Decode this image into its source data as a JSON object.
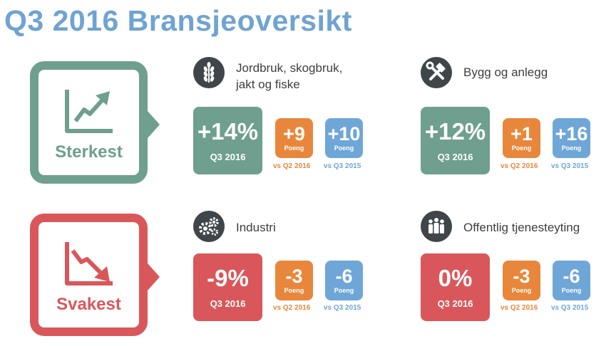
{
  "title": "Q3 2016 Bransjeoversikt",
  "categories": {
    "strongest": {
      "label": "Sterkest",
      "color": "#6f9f8e",
      "icon": "trend-up-icon"
    },
    "weakest": {
      "label": "Svakest",
      "color": "#d9575b",
      "icon": "trend-down-icon"
    }
  },
  "sectors": [
    {
      "name_line1": "Jordbruk, skogbruk,",
      "name_line2": "jakt og fiske",
      "icon": "wheat-icon",
      "main_value": "+14%",
      "main_label": "Q3 2016",
      "q2_value": "+9",
      "q2_unit": "Poeng",
      "q2_label": "vs Q2 2016",
      "q3_value": "+10",
      "q3_unit": "Poeng",
      "q3_label": "vs Q3 2015"
    },
    {
      "name_line1": "Bygg og anlegg",
      "name_line2": "",
      "icon": "tools-icon",
      "main_value": "+12%",
      "main_label": "Q3 2016",
      "q2_value": "+1",
      "q2_unit": "Poeng",
      "q2_label": "vs Q2 2016",
      "q3_value": "+16",
      "q3_unit": "Poeng",
      "q3_label": "vs Q3 2015"
    },
    {
      "name_line1": "Industri",
      "name_line2": "",
      "icon": "gears-icon",
      "main_value": "-9%",
      "main_label": "Q3 2016",
      "q2_value": "-3",
      "q2_unit": "Poeng",
      "q2_label": "vs Q2 2016",
      "q3_value": "-6",
      "q3_unit": "Poeng",
      "q3_label": "vs Q3 2015"
    },
    {
      "name_line1": "Offentlig tjenesteyting",
      "name_line2": "",
      "icon": "people-icon",
      "main_value": "0%",
      "main_label": "Q3 2016",
      "q2_value": "-3",
      "q2_unit": "Poeng",
      "q2_label": "vs Q2 2016",
      "q3_value": "-6",
      "q3_unit": "Poeng",
      "q3_label": "vs Q3 2015"
    }
  ],
  "colors": {
    "title": "#6fa3d2",
    "orange": "#e8873b",
    "blue": "#6fa6d8",
    "dark_icon": "#3f4548"
  }
}
